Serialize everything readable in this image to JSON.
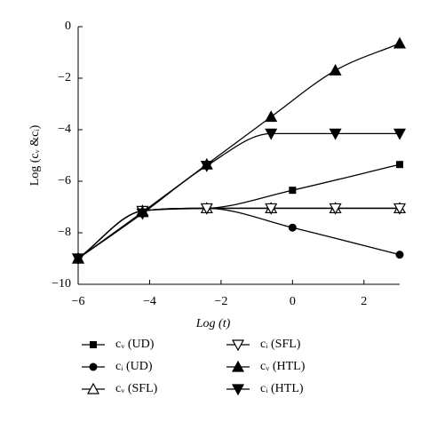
{
  "chart_data": {
    "type": "line",
    "xlabel": "Log (t)",
    "ylabel": "Log (cᵥ &cᵢ)",
    "xlim": [
      -6,
      3
    ],
    "ylim": [
      -10,
      0
    ],
    "xticks": [
      {
        "value": -6,
        "label": "−6"
      },
      {
        "value": -4,
        "label": "−4"
      },
      {
        "value": -2,
        "label": "−2"
      },
      0,
      2
    ],
    "yticks": [
      0,
      {
        "value": -2,
        "label": "−2"
      },
      {
        "value": -4,
        "label": "−4"
      },
      {
        "value": -6,
        "label": "−6"
      },
      {
        "value": -8,
        "label": "−8"
      },
      {
        "value": -10,
        "label": "−10"
      }
    ],
    "series": [
      {
        "name": "cᵥ (UD)",
        "marker": "square",
        "color": "#000",
        "x": [
          -6,
          -4.2,
          -2.4,
          0,
          3
        ],
        "values": [
          -9,
          -7.15,
          -7.05,
          -6.35,
          -5.35
        ]
      },
      {
        "name": "cᵢ (UD)",
        "marker": "circle",
        "color": "#000",
        "x": [
          -6,
          -4.2,
          -2.4,
          0,
          3
        ],
        "values": [
          -9,
          -7.15,
          -7.05,
          -7.8,
          -8.85
        ]
      },
      {
        "name": "cᵥ (SFL)",
        "marker": "triangle-up-open",
        "color": "#000",
        "x": [
          -6,
          -4.2,
          -2.4,
          -0.6,
          1.2,
          3
        ],
        "values": [
          -9,
          -7.15,
          -7.05,
          -7.05,
          -7.05,
          -7.05
        ]
      },
      {
        "name": "cᵢ (SFL)",
        "marker": "triangle-down-open",
        "color": "#000",
        "x": [
          -6,
          -4.2,
          -2.4,
          -0.6,
          1.2,
          3
        ],
        "values": [
          -9,
          -7.15,
          -7.05,
          -7.05,
          -7.05,
          -7.05
        ]
      },
      {
        "name": "cᵥ (HTL)",
        "marker": "triangle-up",
        "color": "#000",
        "x": [
          -6,
          -4.2,
          -2.4,
          -0.6,
          1.2,
          3
        ],
        "values": [
          -9,
          -7.2,
          -5.35,
          -3.5,
          -1.7,
          -0.65
        ]
      },
      {
        "name": "cᵢ (HTL)",
        "marker": "triangle-down",
        "color": "#000",
        "x": [
          -6,
          -4.2,
          -2.4,
          -0.6,
          1.2,
          3
        ],
        "values": [
          -9,
          -7.25,
          -5.4,
          -4.15,
          -4.15,
          -4.15
        ]
      }
    ]
  }
}
